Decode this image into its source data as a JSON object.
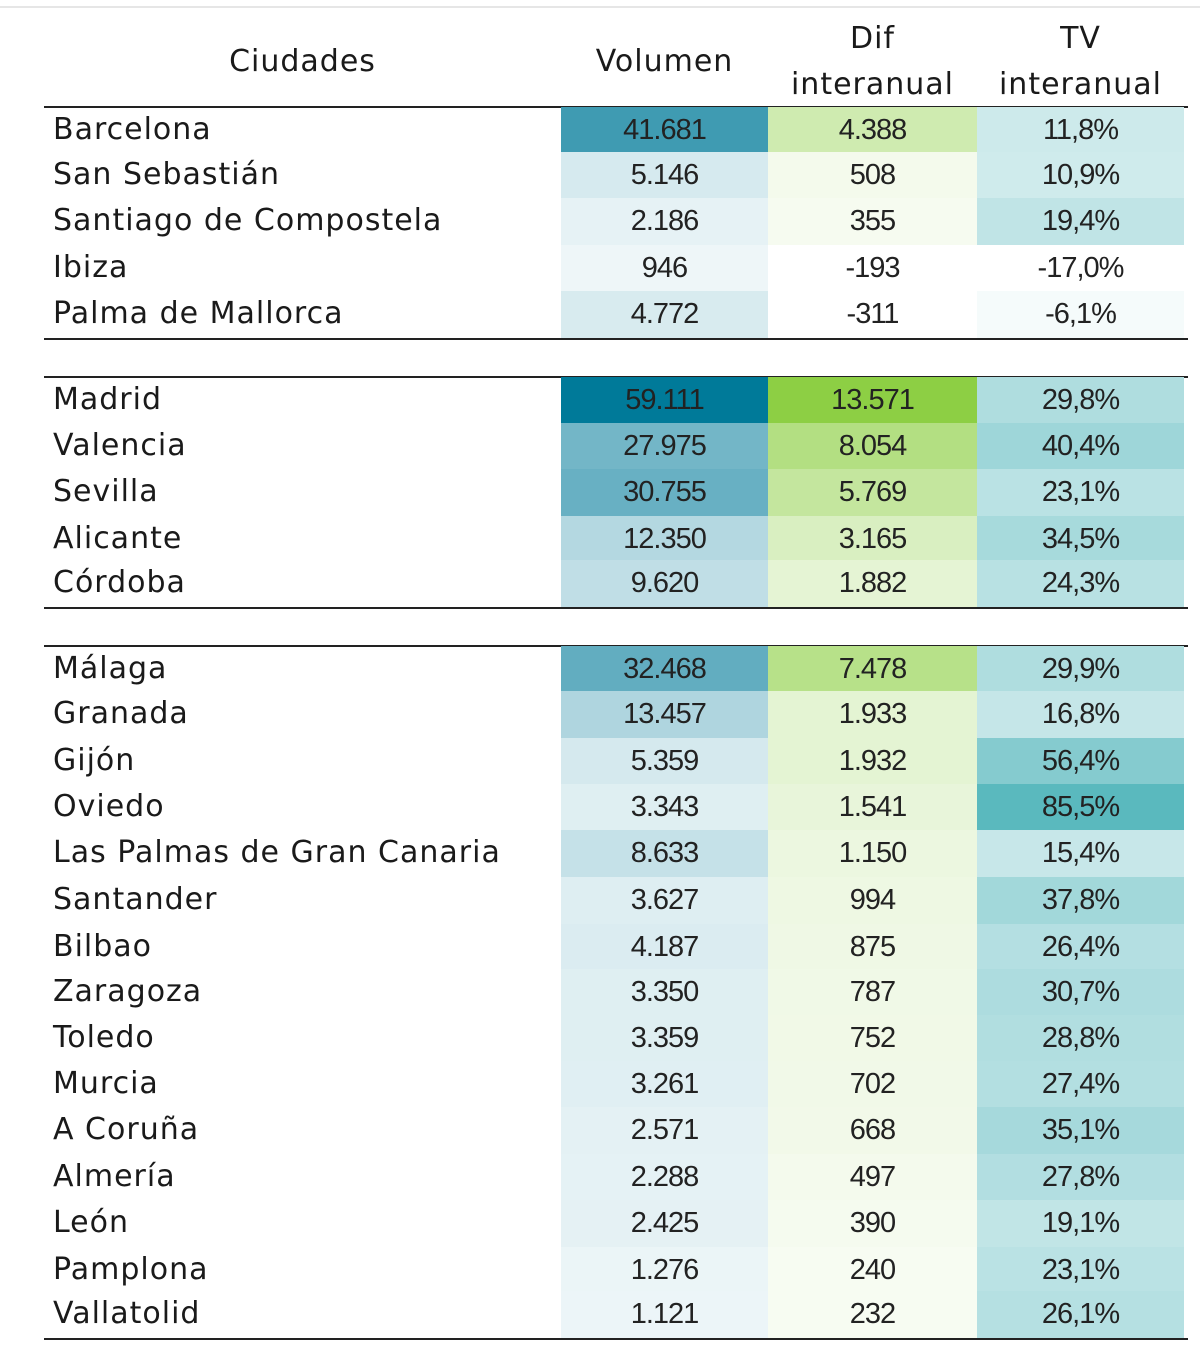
{
  "header": {
    "ciudades": "Ciudades",
    "volumen": "Volumen",
    "dif_line1": "Dif",
    "dif_line2": "interanual",
    "tv_line1": "TV",
    "tv_line2": "interanual"
  },
  "scale": {
    "vol_max": 59111,
    "dif_max": 13571,
    "tv_max": 85.5,
    "vol_color": "#007a99",
    "dif_color": "#8dcf44",
    "tv_color": "#5ab9be"
  },
  "groups": [
    {
      "rows": [
        {
          "city": "Barcelona",
          "vol": "41.681",
          "dif": "4.388",
          "tv": "11,8%",
          "vol_n": 41681,
          "dif_n": 4388,
          "tv_n": 11.8
        },
        {
          "city": "San Sebastián",
          "vol": "5.146",
          "dif": "508",
          "tv": "10,9%",
          "vol_n": 5146,
          "dif_n": 508,
          "tv_n": 10.9
        },
        {
          "city": "Santiago de Compostela",
          "vol": "2.186",
          "dif": "355",
          "tv": "19,4%",
          "vol_n": 2186,
          "dif_n": 355,
          "tv_n": 19.4
        },
        {
          "city": "Ibiza",
          "vol": "946",
          "dif": "-193",
          "tv": "-17,0%",
          "vol_n": 946,
          "dif_n": -193,
          "tv_n": -17.0
        },
        {
          "city": "Palma de Mallorca",
          "vol": "4.772",
          "dif": "-311",
          "tv": "-6,1%",
          "vol_n": 4772,
          "dif_n": -311,
          "tv_n": -6.1
        }
      ]
    },
    {
      "rows": [
        {
          "city": "Madrid",
          "vol": "59.111",
          "dif": "13.571",
          "tv": "29,8%",
          "vol_n": 59111,
          "dif_n": 13571,
          "tv_n": 29.8
        },
        {
          "city": "Valencia",
          "vol": "27.975",
          "dif": "8.054",
          "tv": "40,4%",
          "vol_n": 27975,
          "dif_n": 8054,
          "tv_n": 40.4
        },
        {
          "city": "Sevilla",
          "vol": "30.755",
          "dif": "5.769",
          "tv": "23,1%",
          "vol_n": 30755,
          "dif_n": 5769,
          "tv_n": 23.1
        },
        {
          "city": "Alicante",
          "vol": "12.350",
          "dif": "3.165",
          "tv": "34,5%",
          "vol_n": 12350,
          "dif_n": 3165,
          "tv_n": 34.5
        },
        {
          "city": "Córdoba",
          "vol": "9.620",
          "dif": "1.882",
          "tv": "24,3%",
          "vol_n": 9620,
          "dif_n": 1882,
          "tv_n": 24.3
        }
      ]
    },
    {
      "rows": [
        {
          "city": "Málaga",
          "vol": "32.468",
          "dif": "7.478",
          "tv": "29,9%",
          "vol_n": 32468,
          "dif_n": 7478,
          "tv_n": 29.9
        },
        {
          "city": "Granada",
          "vol": "13.457",
          "dif": "1.933",
          "tv": "16,8%",
          "vol_n": 13457,
          "dif_n": 1933,
          "tv_n": 16.8
        },
        {
          "city": "Gijón",
          "vol": "5.359",
          "dif": "1.932",
          "tv": "56,4%",
          "vol_n": 5359,
          "dif_n": 1932,
          "tv_n": 56.4
        },
        {
          "city": "Oviedo",
          "vol": "3.343",
          "dif": "1.541",
          "tv": "85,5%",
          "vol_n": 3343,
          "dif_n": 1541,
          "tv_n": 85.5
        },
        {
          "city": "Las Palmas de Gran Canaria",
          "vol": "8.633",
          "dif": "1.150",
          "tv": "15,4%",
          "vol_n": 8633,
          "dif_n": 1150,
          "tv_n": 15.4
        },
        {
          "city": "Santander",
          "vol": "3.627",
          "dif": "994",
          "tv": "37,8%",
          "vol_n": 3627,
          "dif_n": 994,
          "tv_n": 37.8
        },
        {
          "city": "Bilbao",
          "vol": "4.187",
          "dif": "875",
          "tv": "26,4%",
          "vol_n": 4187,
          "dif_n": 875,
          "tv_n": 26.4
        },
        {
          "city": "Zaragoza",
          "vol": "3.350",
          "dif": "787",
          "tv": "30,7%",
          "vol_n": 3350,
          "dif_n": 787,
          "tv_n": 30.7
        },
        {
          "city": "Toledo",
          "vol": "3.359",
          "dif": "752",
          "tv": "28,8%",
          "vol_n": 3359,
          "dif_n": 752,
          "tv_n": 28.8
        },
        {
          "city": "Murcia",
          "vol": "3.261",
          "dif": "702",
          "tv": "27,4%",
          "vol_n": 3261,
          "dif_n": 702,
          "tv_n": 27.4
        },
        {
          "city": "A Coruña",
          "vol": "2.571",
          "dif": "668",
          "tv": "35,1%",
          "vol_n": 2571,
          "dif_n": 668,
          "tv_n": 35.1
        },
        {
          "city": "Almería",
          "vol": "2.288",
          "dif": "497",
          "tv": "27,8%",
          "vol_n": 2288,
          "dif_n": 497,
          "tv_n": 27.8
        },
        {
          "city": "León",
          "vol": "2.425",
          "dif": "390",
          "tv": "19,1%",
          "vol_n": 2425,
          "dif_n": 390,
          "tv_n": 19.1
        },
        {
          "city": "Pamplona",
          "vol": "1.276",
          "dif": "240",
          "tv": "23,1%",
          "vol_n": 1276,
          "dif_n": 240,
          "tv_n": 23.1
        },
        {
          "city": "Vallatolid",
          "vol": "1.121",
          "dif": "232",
          "tv": "26,1%",
          "vol_n": 1121,
          "dif_n": 232,
          "tv_n": 26.1
        }
      ]
    }
  ]
}
